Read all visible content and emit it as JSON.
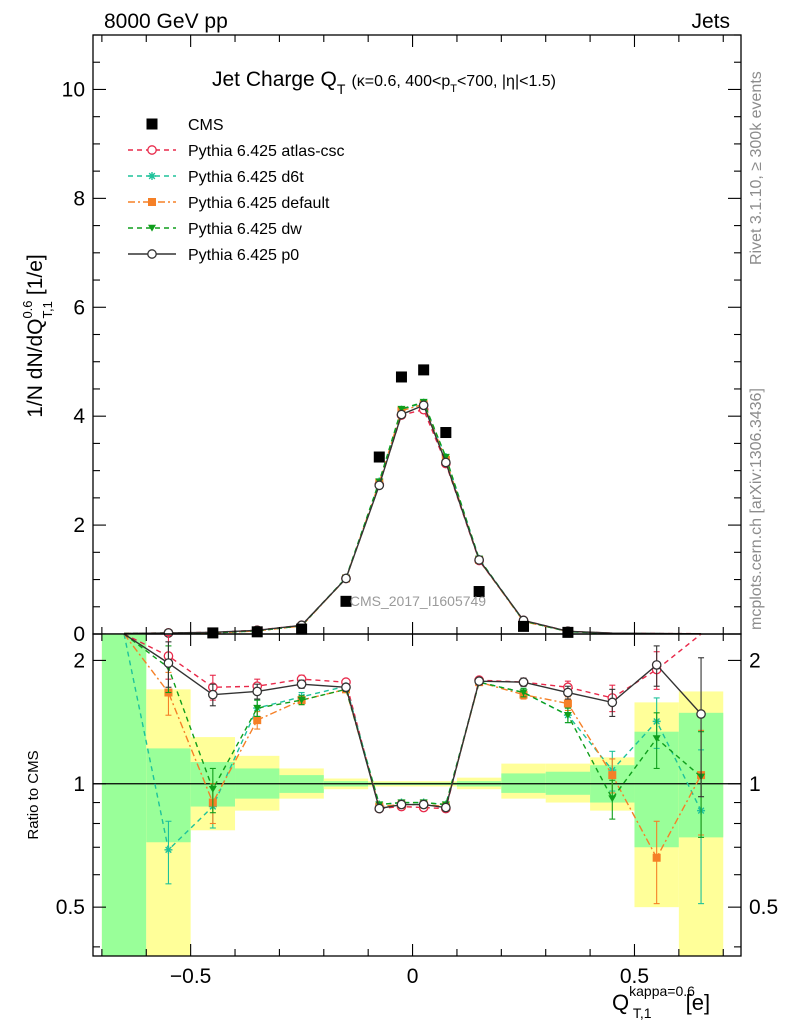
{
  "header": {
    "left": "8000 GeV pp",
    "right": "Jets"
  },
  "side_labels": {
    "rivet": "Rivet 3.1.10, ≥ 300k events",
    "mcplots": "mcplots.cern.ch [arXiv:1306.3436]"
  },
  "chart_data": {
    "type": "line",
    "title": {
      "main": "Jet Charge Q",
      "main_sub": "T",
      "details": "(κ=0.6, 400<p",
      "details_sub": "T",
      "details_tail": "<700, |η|<1.5)"
    },
    "watermark": "CMS_2017_I1605749",
    "xlabel": {
      "base": "Q",
      "sub": "T,1",
      "sup": "kappa=0.6",
      "unit": "[e]"
    },
    "ylabel": {
      "base": "1/N dN/dQ",
      "sub": "T,1",
      "sup": "0.6",
      "unit": "[1/e]"
    },
    "ratio_ylabel": "Ratio to CMS",
    "xlim": [
      -0.72,
      0.74
    ],
    "ylim": [
      0,
      11
    ],
    "ratio_ylim": [
      0.38,
      2.32
    ],
    "x_ticks": [
      {
        "v": -0.5,
        "label": "−0.5"
      },
      {
        "v": 0,
        "label": "0"
      },
      {
        "v": 0.5,
        "label": "0.5"
      }
    ],
    "y_ticks": [
      {
        "v": 0,
        "label": "0"
      },
      {
        "v": 2,
        "label": "2"
      },
      {
        "v": 4,
        "label": "4"
      },
      {
        "v": 6,
        "label": "6"
      },
      {
        "v": 8,
        "label": "8"
      },
      {
        "v": 10,
        "label": "10"
      }
    ],
    "ratio_ticks": [
      {
        "v": 0.5,
        "label": "0.5"
      },
      {
        "v": 1,
        "label": "1"
      },
      {
        "v": 2,
        "label": "2"
      }
    ],
    "legend_position": "top-left",
    "x": [
      -0.65,
      -0.55,
      -0.45,
      -0.35,
      -0.25,
      -0.15,
      -0.075,
      -0.025,
      0.025,
      0.075,
      0.15,
      0.25,
      0.35,
      0.45,
      0.55,
      0.65
    ],
    "data": {
      "name": "CMS",
      "color": "#000000",
      "y": [
        0.005,
        0.01,
        0.02,
        0.04,
        0.09,
        0.6,
        3.25,
        4.72,
        4.85,
        3.7,
        0.78,
        0.14,
        0.03,
        0.01,
        0.005,
        0.003
      ]
    },
    "bands": [
      {
        "x0": -0.7,
        "x1": -0.6,
        "y_lo": 0.38,
        "y_hi": 2.32,
        "g_lo": 0.38,
        "g_hi": 2.32
      },
      {
        "x0": -0.6,
        "x1": -0.5,
        "y_lo": 0.38,
        "y_hi": 1.7,
        "g_lo": 0.72,
        "g_hi": 1.22
      },
      {
        "x0": -0.5,
        "x1": -0.4,
        "y_lo": 0.77,
        "y_hi": 1.3,
        "g_lo": 0.88,
        "g_hi": 1.13
      },
      {
        "x0": -0.4,
        "x1": -0.3,
        "y_lo": 0.86,
        "y_hi": 1.17,
        "g_lo": 0.92,
        "g_hi": 1.09
      },
      {
        "x0": -0.3,
        "x1": -0.2,
        "y_lo": 0.92,
        "y_hi": 1.09,
        "g_lo": 0.95,
        "g_hi": 1.05
      },
      {
        "x0": -0.2,
        "x1": -0.1,
        "y_lo": 0.97,
        "y_hi": 1.03,
        "g_lo": 0.985,
        "g_hi": 1.015
      },
      {
        "x0": -0.1,
        "x1": 0.1,
        "y_lo": 0.985,
        "y_hi": 1.015,
        "g_lo": 0.993,
        "g_hi": 1.007
      },
      {
        "x0": 0.1,
        "x1": 0.2,
        "y_lo": 0.97,
        "y_hi": 1.035,
        "g_lo": 0.985,
        "g_hi": 1.015
      },
      {
        "x0": 0.2,
        "x1": 0.3,
        "y_lo": 0.92,
        "y_hi": 1.12,
        "g_lo": 0.95,
        "g_hi": 1.06
      },
      {
        "x0": 0.3,
        "x1": 0.4,
        "y_lo": 0.9,
        "y_hi": 1.12,
        "g_lo": 0.94,
        "g_hi": 1.07
      },
      {
        "x0": 0.4,
        "x1": 0.5,
        "y_lo": 0.86,
        "y_hi": 1.16,
        "g_lo": 0.9,
        "g_hi": 1.11
      },
      {
        "x0": 0.5,
        "x1": 0.6,
        "y_lo": 0.5,
        "y_hi": 1.58,
        "g_lo": 0.7,
        "g_hi": 1.34
      },
      {
        "x0": 0.6,
        "x1": 0.7,
        "y_lo": 0.38,
        "y_hi": 1.68,
        "g_lo": 0.74,
        "g_hi": 1.49
      }
    ],
    "series": [
      {
        "name": "Pythia 6.425 atlas-csc",
        "color": "#e8294a",
        "dash": "5,4",
        "marker": "circle-open",
        "y": [
          0.01,
          0.02,
          0.03,
          0.07,
          0.16,
          1.02,
          2.74,
          4.02,
          4.12,
          3.13,
          1.35,
          0.25,
          0.05,
          0.016,
          0.009,
          0.006
        ],
        "ratio": [
          2.5,
          2.05,
          1.72,
          1.73,
          1.8,
          1.77,
          0.87,
          0.88,
          0.875,
          0.87,
          1.79,
          1.77,
          1.72,
          1.62,
          1.9,
          2.5
        ],
        "err": [
          0,
          0.25,
          0.12,
          0.07,
          0.04,
          0.02,
          0.01,
          0.01,
          0.01,
          0.01,
          0.02,
          0.04,
          0.06,
          0.12,
          0.2,
          0
        ]
      },
      {
        "name": "Pythia 6.425 d6t",
        "color": "#1ec29a",
        "dash": "5,4",
        "marker": "star",
        "y": [
          0.008,
          0.007,
          0.018,
          0.06,
          0.15,
          1.03,
          2.8,
          4.12,
          4.25,
          3.25,
          1.38,
          0.24,
          0.045,
          0.012,
          0.007,
          0.003
        ],
        "ratio": [
          2.6,
          0.69,
          0.88,
          1.53,
          1.63,
          1.73,
          0.89,
          0.9,
          0.9,
          0.89,
          1.77,
          1.67,
          1.47,
          1.08,
          1.42,
          0.86
        ],
        "err": [
          0,
          0.12,
          0.1,
          0.07,
          0.04,
          0.02,
          0.01,
          0.01,
          0.01,
          0.01,
          0.02,
          0.04,
          0.06,
          0.12,
          0.2,
          0.35
        ]
      },
      {
        "name": "Pythia 6.425 default",
        "color": "#f58027",
        "dash": "7,3,2,3",
        "marker": "square",
        "y": [
          0.009,
          0.016,
          0.018,
          0.057,
          0.145,
          1.02,
          2.78,
          4.1,
          4.22,
          3.2,
          1.36,
          0.23,
          0.048,
          0.011,
          0.003,
          0.003
        ],
        "ratio": [
          2.5,
          1.67,
          0.9,
          1.43,
          1.6,
          1.7,
          0.88,
          0.89,
          0.89,
          0.88,
          1.77,
          1.65,
          1.57,
          1.05,
          0.66,
          1.05
        ],
        "err": [
          0,
          0.2,
          0.1,
          0.07,
          0.04,
          0.02,
          0.01,
          0.01,
          0.01,
          0.01,
          0.02,
          0.04,
          0.06,
          0.1,
          0.15,
          0.3
        ]
      },
      {
        "name": "Pythia 6.425 dw",
        "color": "#0f9e1b",
        "dash": "5,4",
        "marker": "triangle-down",
        "y": [
          0.008,
          0.019,
          0.02,
          0.06,
          0.15,
          1.03,
          2.8,
          4.13,
          4.26,
          3.25,
          1.38,
          0.24,
          0.043,
          0.009,
          0.006,
          0.003
        ],
        "ratio": [
          2.6,
          1.92,
          0.97,
          1.53,
          1.6,
          1.7,
          0.89,
          0.9,
          0.9,
          0.89,
          1.77,
          1.67,
          1.47,
          0.92,
          1.29,
          1.04
        ],
        "err": [
          0,
          0.25,
          0.12,
          0.07,
          0.04,
          0.02,
          0.01,
          0.01,
          0.01,
          0.01,
          0.02,
          0.04,
          0.06,
          0.1,
          0.2,
          0.3
        ]
      },
      {
        "name": "Pythia 6.425 p0",
        "color": "#333333",
        "dash": "",
        "marker": "circle-open",
        "y": [
          0.01,
          0.019,
          0.03,
          0.068,
          0.16,
          1.02,
          2.73,
          4.03,
          4.2,
          3.15,
          1.36,
          0.25,
          0.05,
          0.016,
          0.01,
          0.004
        ],
        "ratio": [
          2.6,
          1.97,
          1.65,
          1.68,
          1.75,
          1.72,
          0.87,
          0.89,
          0.89,
          0.875,
          1.78,
          1.77,
          1.67,
          1.58,
          1.95,
          1.48
        ],
        "err": [
          0,
          0.25,
          0.1,
          0.07,
          0.04,
          0.02,
          0.01,
          0.01,
          0.01,
          0.01,
          0.02,
          0.04,
          0.06,
          0.12,
          0.22,
          0.55
        ]
      }
    ]
  }
}
